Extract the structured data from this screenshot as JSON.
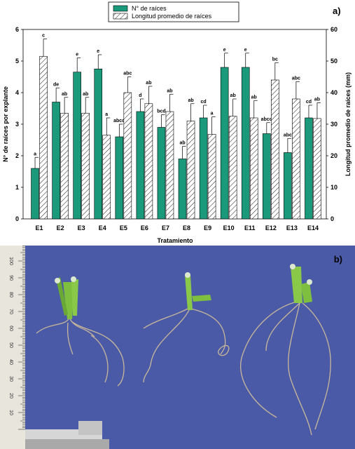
{
  "chart_data": {
    "type": "bar",
    "panel_label": "a)",
    "categories": [
      "E1",
      "E2",
      "E3",
      "E4",
      "E5",
      "E6",
      "E7",
      "E8",
      "E9",
      "E10",
      "E11",
      "E12",
      "E13",
      "E14"
    ],
    "xlabel": "Tratamiento",
    "ylabel_left": "N° de raíces por explante",
    "ylabel_right": "Longitud promedio de raíces (mm)",
    "ylim_left": [
      0,
      6
    ],
    "ylim_right": [
      0,
      60
    ],
    "yticks_left": [
      "0",
      "1",
      "2",
      "3",
      "4",
      "5",
      "6"
    ],
    "yticks_right": [
      "0",
      "10",
      "20",
      "30",
      "40",
      "50",
      "60"
    ],
    "legend_position": "top-center",
    "series": [
      {
        "name": "N° de raíces",
        "axis": "left",
        "color": "#1a9a7a",
        "values": [
          1.6,
          3.7,
          4.65,
          4.75,
          2.6,
          3.4,
          2.9,
          1.9,
          3.2,
          4.8,
          4.8,
          2.7,
          2.1,
          3.2
        ],
        "errors": [
          0.35,
          0.45,
          0.45,
          0.45,
          0.4,
          0.4,
          0.4,
          0.4,
          0.4,
          0.45,
          0.45,
          0.35,
          0.45,
          0.4
        ],
        "letters": [
          "a",
          "de",
          "e",
          "e",
          "abcd",
          "d",
          "bcd",
          "ab",
          "cd",
          "e",
          "e",
          "abcd",
          "abc",
          "cd"
        ]
      },
      {
        "name": "Longitud promedio de raíces",
        "axis": "right",
        "color": "#ffffff",
        "values": [
          51.5,
          33.5,
          33.5,
          26.5,
          40,
          36.5,
          34,
          31,
          26.8,
          32.5,
          32,
          44,
          38,
          31.8
        ],
        "errors": [
          5.5,
          5,
          5,
          5.5,
          5,
          5.5,
          5.5,
          5.5,
          5.5,
          5.5,
          5.5,
          5.5,
          5.5,
          5
        ],
        "letters": [
          "c",
          "ab",
          "ab",
          "a",
          "abc",
          "ab",
          "ab",
          "ab",
          "a",
          "ab",
          "ab",
          "bc",
          "abc",
          "ab"
        ]
      }
    ]
  },
  "photo": {
    "panel_label": "b)",
    "background_color": "#4a5aa6",
    "ruler_numbers": [
      "10",
      "20",
      "30",
      "40",
      "50",
      "60",
      "70",
      "80",
      "90",
      "100"
    ]
  }
}
